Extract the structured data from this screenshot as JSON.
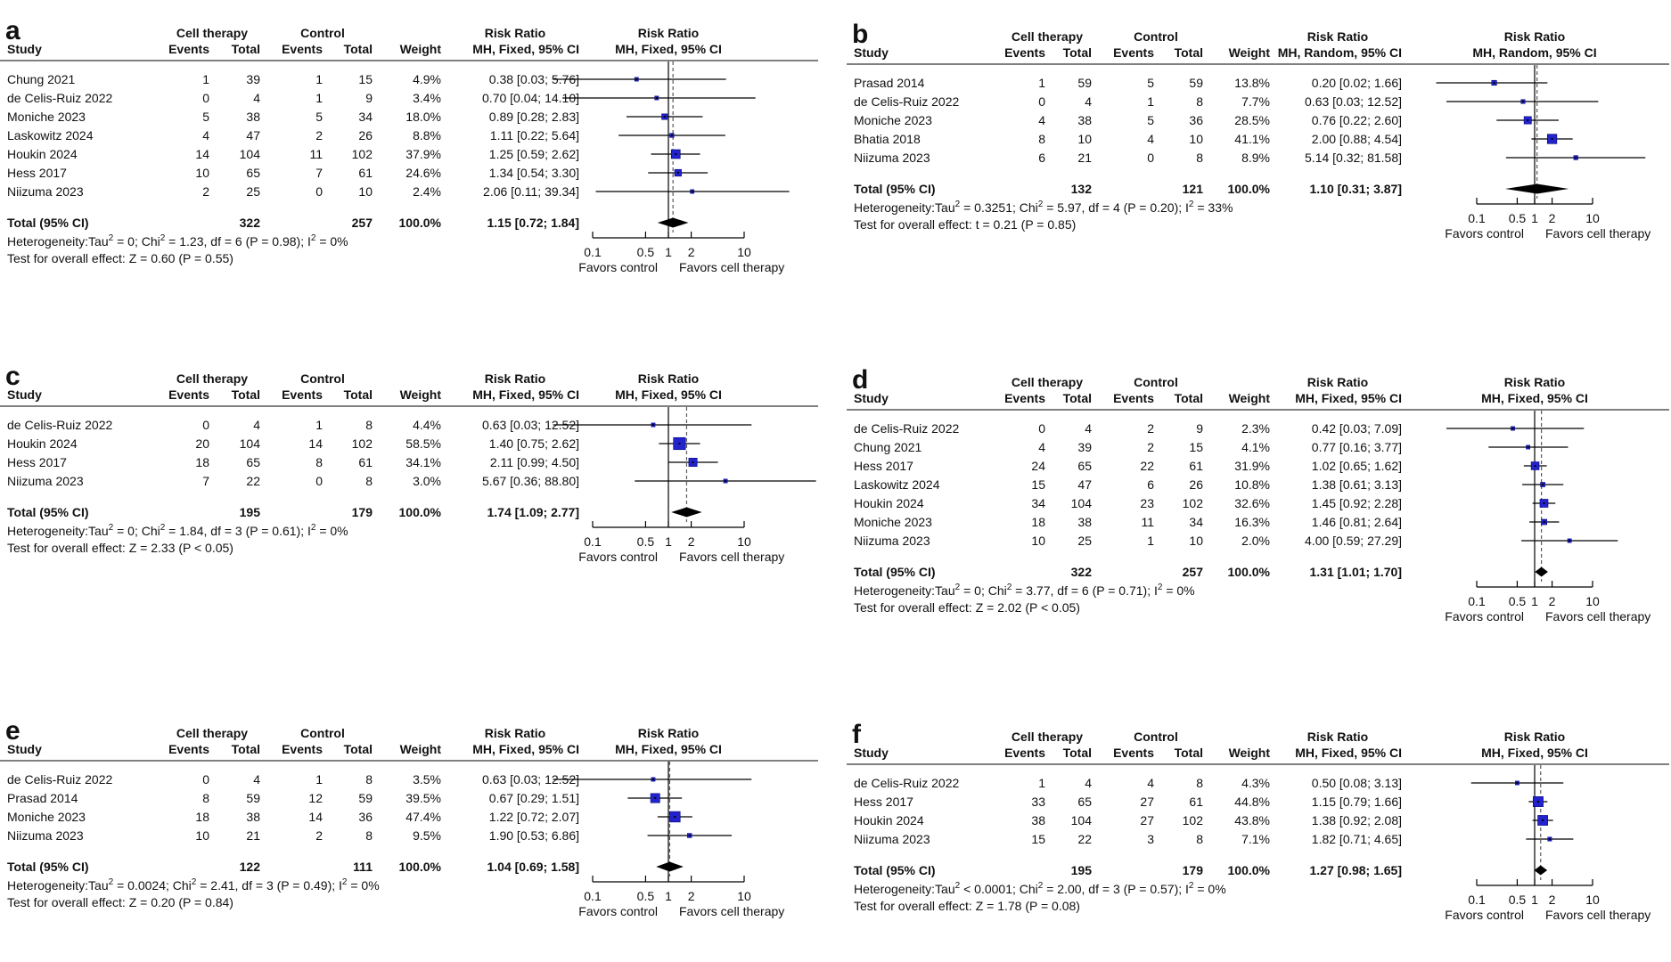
{
  "figure": {
    "headers": {
      "study": "Study",
      "events": "Events",
      "total": "Total",
      "weight": "Weight",
      "group1": "Cell therapy",
      "group2": "Control",
      "effect": "Risk Ratio"
    },
    "axis": {
      "scale": "log",
      "ticks": [
        0.1,
        0.5,
        1,
        2,
        10
      ],
      "labels": [
        "0.1",
        "0.5",
        "1",
        "2",
        "10"
      ],
      "favors_left": "Favors control",
      "favors_right": "Favors cell therapy"
    },
    "colors": {
      "square": "#2323cd",
      "square_border": "#00007a",
      "marker_center": "#000000",
      "diamond": "#000000",
      "ci_line": "#000000",
      "rule": "#808080",
      "dashed_line": "#5a5a5a",
      "text": "#111111"
    }
  },
  "chart_data": [
    {
      "type": "forest",
      "label": "a",
      "model": "MH, Fixed, 95% CI",
      "xlim": [
        0.1,
        10
      ],
      "studies": [
        {
          "study": "Chung 2021",
          "events1": 1,
          "total1": 39,
          "events2": 1,
          "total2": 15,
          "weight": "4.9%",
          "rr": 0.38,
          "ci_low": 0.03,
          "ci_high": 5.76,
          "ci_text": "0.38 [0.03; 5.76]"
        },
        {
          "study": "de Celis-Ruiz 2022",
          "events1": 0,
          "total1": 4,
          "events2": 1,
          "total2": 9,
          "weight": "3.4%",
          "rr": 0.7,
          "ci_low": 0.04,
          "ci_high": 14.1,
          "ci_text": "0.70 [0.04; 14.10]"
        },
        {
          "study": "Moniche 2023",
          "events1": 5,
          "total1": 38,
          "events2": 5,
          "total2": 34,
          "weight": "18.0%",
          "rr": 0.89,
          "ci_low": 0.28,
          "ci_high": 2.83,
          "ci_text": "0.89 [0.28; 2.83]"
        },
        {
          "study": "Laskowitz 2024",
          "events1": 4,
          "total1": 47,
          "events2": 2,
          "total2": 26,
          "weight": "8.8%",
          "rr": 1.11,
          "ci_low": 0.22,
          "ci_high": 5.64,
          "ci_text": "1.11 [0.22; 5.64]"
        },
        {
          "study": "Houkin 2024",
          "events1": 14,
          "total1": 104,
          "events2": 11,
          "total2": 102,
          "weight": "37.9%",
          "rr": 1.25,
          "ci_low": 0.59,
          "ci_high": 2.62,
          "ci_text": "1.25 [0.59; 2.62]"
        },
        {
          "study": "Hess 2017",
          "events1": 10,
          "total1": 65,
          "events2": 7,
          "total2": 61,
          "weight": "24.6%",
          "rr": 1.34,
          "ci_low": 0.54,
          "ci_high": 3.3,
          "ci_text": "1.34 [0.54; 3.30]"
        },
        {
          "study": "Niizuma 2023",
          "events1": 2,
          "total1": 25,
          "events2": 0,
          "total2": 10,
          "weight": "2.4%",
          "rr": 2.06,
          "ci_low": 0.11,
          "ci_high": 39.34,
          "ci_text": "2.06 [0.11; 39.34]"
        }
      ],
      "total": {
        "label": "Total (95% CI)",
        "total1": 322,
        "total2": 257,
        "weight": "100.0%",
        "rr": 1.15,
        "ci_low": 0.72,
        "ci_high": 1.84,
        "ci_text": "1.15 [0.72; 1.84]"
      },
      "heterogeneity": "Heterogeneity:Tau² = 0; Chi² = 1.23, df = 6 (P = 0.98); I² = 0%",
      "overall_test": "Test for overall effect: Z = 0.60 (P = 0.55)"
    },
    {
      "type": "forest",
      "label": "b",
      "model": "MH, Random, 95% CI",
      "xlim": [
        0.1,
        10
      ],
      "studies": [
        {
          "study": "Prasad 2014",
          "events1": 1,
          "total1": 59,
          "events2": 5,
          "total2": 59,
          "weight": "13.8%",
          "rr": 0.2,
          "ci_low": 0.02,
          "ci_high": 1.66,
          "ci_text": "0.20 [0.02; 1.66]"
        },
        {
          "study": "de Celis-Ruiz 2022",
          "events1": 0,
          "total1": 4,
          "events2": 1,
          "total2": 8,
          "weight": "7.7%",
          "rr": 0.63,
          "ci_low": 0.03,
          "ci_high": 12.52,
          "ci_text": "0.63 [0.03; 12.52]"
        },
        {
          "study": "Moniche 2023",
          "events1": 4,
          "total1": 38,
          "events2": 5,
          "total2": 36,
          "weight": "28.5%",
          "rr": 0.76,
          "ci_low": 0.22,
          "ci_high": 2.6,
          "ci_text": "0.76 [0.22; 2.60]"
        },
        {
          "study": "Bhatia 2018",
          "events1": 8,
          "total1": 10,
          "events2": 4,
          "total2": 10,
          "weight": "41.1%",
          "rr": 2.0,
          "ci_low": 0.88,
          "ci_high": 4.54,
          "ci_text": "2.00 [0.88; 4.54]"
        },
        {
          "study": "Niizuma 2023",
          "events1": 6,
          "total1": 21,
          "events2": 0,
          "total2": 8,
          "weight": "8.9%",
          "rr": 5.14,
          "ci_low": 0.32,
          "ci_high": 81.58,
          "ci_text": "5.14 [0.32; 81.58]"
        }
      ],
      "total": {
        "label": "Total (95% CI)",
        "total1": 132,
        "total2": 121,
        "weight": "100.0%",
        "rr": 1.1,
        "ci_low": 0.31,
        "ci_high": 3.87,
        "ci_text": "1.10 [0.31; 3.87]"
      },
      "heterogeneity": "Heterogeneity:Tau² = 0.3251; Chi² = 5.97, df = 4 (P = 0.20); I² = 33%",
      "overall_test": "Test for overall effect: t = 0.21 (P = 0.85)"
    },
    {
      "type": "forest",
      "label": "c",
      "model": "MH, Fixed, 95% CI",
      "xlim": [
        0.1,
        10
      ],
      "studies": [
        {
          "study": "de Celis-Ruiz 2022",
          "events1": 0,
          "total1": 4,
          "events2": 1,
          "total2": 8,
          "weight": "4.4%",
          "rr": 0.63,
          "ci_low": 0.03,
          "ci_high": 12.52,
          "ci_text": "0.63 [0.03; 12.52]"
        },
        {
          "study": "Houkin 2024",
          "events1": 20,
          "total1": 104,
          "events2": 14,
          "total2": 102,
          "weight": "58.5%",
          "rr": 1.4,
          "ci_low": 0.75,
          "ci_high": 2.62,
          "ci_text": "1.40 [0.75; 2.62]"
        },
        {
          "study": "Hess 2017",
          "events1": 18,
          "total1": 65,
          "events2": 8,
          "total2": 61,
          "weight": "34.1%",
          "rr": 2.11,
          "ci_low": 0.99,
          "ci_high": 4.5,
          "ci_text": "2.11 [0.99; 4.50]"
        },
        {
          "study": "Niizuma 2023",
          "events1": 7,
          "total1": 22,
          "events2": 0,
          "total2": 8,
          "weight": "3.0%",
          "rr": 5.67,
          "ci_low": 0.36,
          "ci_high": 88.8,
          "ci_text": "5.67 [0.36; 88.80]"
        }
      ],
      "total": {
        "label": "Total (95% CI)",
        "total1": 195,
        "total2": 179,
        "weight": "100.0%",
        "rr": 1.74,
        "ci_low": 1.09,
        "ci_high": 2.77,
        "ci_text": "1.74 [1.09; 2.77]"
      },
      "heterogeneity": "Heterogeneity:Tau² = 0; Chi² = 1.84, df = 3 (P = 0.61); I² = 0%",
      "overall_test": "Test for overall effect: Z = 2.33 (P < 0.05)"
    },
    {
      "type": "forest",
      "label": "d",
      "model": "MH, Fixed, 95% CI",
      "xlim": [
        0.1,
        10
      ],
      "studies": [
        {
          "study": "de Celis-Ruiz 2022",
          "events1": 0,
          "total1": 4,
          "events2": 2,
          "total2": 9,
          "weight": "2.3%",
          "rr": 0.42,
          "ci_low": 0.03,
          "ci_high": 7.09,
          "ci_text": "0.42 [0.03; 7.09]"
        },
        {
          "study": "Chung 2021",
          "events1": 4,
          "total1": 39,
          "events2": 2,
          "total2": 15,
          "weight": "4.1%",
          "rr": 0.77,
          "ci_low": 0.16,
          "ci_high": 3.77,
          "ci_text": "0.77 [0.16; 3.77]"
        },
        {
          "study": "Hess 2017",
          "events1": 24,
          "total1": 65,
          "events2": 22,
          "total2": 61,
          "weight": "31.9%",
          "rr": 1.02,
          "ci_low": 0.65,
          "ci_high": 1.62,
          "ci_text": "1.02 [0.65; 1.62]"
        },
        {
          "study": "Laskowitz 2024",
          "events1": 15,
          "total1": 47,
          "events2": 6,
          "total2": 26,
          "weight": "10.8%",
          "rr": 1.38,
          "ci_low": 0.61,
          "ci_high": 3.13,
          "ci_text": "1.38 [0.61; 3.13]"
        },
        {
          "study": "Houkin 2024",
          "events1": 34,
          "total1": 104,
          "events2": 23,
          "total2": 102,
          "weight": "32.6%",
          "rr": 1.45,
          "ci_low": 0.92,
          "ci_high": 2.28,
          "ci_text": "1.45 [0.92; 2.28]"
        },
        {
          "study": "Moniche 2023",
          "events1": 18,
          "total1": 38,
          "events2": 11,
          "total2": 34,
          "weight": "16.3%",
          "rr": 1.46,
          "ci_low": 0.81,
          "ci_high": 2.64,
          "ci_text": "1.46 [0.81; 2.64]"
        },
        {
          "study": "Niizuma 2023",
          "events1": 10,
          "total1": 25,
          "events2": 1,
          "total2": 10,
          "weight": "2.0%",
          "rr": 4.0,
          "ci_low": 0.59,
          "ci_high": 27.29,
          "ci_text": "4.00 [0.59; 27.29]"
        }
      ],
      "total": {
        "label": "Total (95% CI)",
        "total1": 322,
        "total2": 257,
        "weight": "100.0%",
        "rr": 1.31,
        "ci_low": 1.01,
        "ci_high": 1.7,
        "ci_text": "1.31 [1.01; 1.70]"
      },
      "heterogeneity": "Heterogeneity:Tau² = 0; Chi² = 3.77, df = 6 (P = 0.71); I² = 0%",
      "overall_test": "Test for overall effect: Z = 2.02 (P < 0.05)"
    },
    {
      "type": "forest",
      "label": "e",
      "model": "MH, Fixed, 95% CI",
      "xlim": [
        0.1,
        10
      ],
      "studies": [
        {
          "study": "de Celis-Ruiz 2022",
          "events1": 0,
          "total1": 4,
          "events2": 1,
          "total2": 8,
          "weight": "3.5%",
          "rr": 0.63,
          "ci_low": 0.03,
          "ci_high": 12.52,
          "ci_text": "0.63 [0.03; 12.52]"
        },
        {
          "study": "Prasad 2014",
          "events1": 8,
          "total1": 59,
          "events2": 12,
          "total2": 59,
          "weight": "39.5%",
          "rr": 0.67,
          "ci_low": 0.29,
          "ci_high": 1.51,
          "ci_text": "0.67 [0.29; 1.51]"
        },
        {
          "study": "Moniche 2023",
          "events1": 18,
          "total1": 38,
          "events2": 14,
          "total2": 36,
          "weight": "47.4%",
          "rr": 1.22,
          "ci_low": 0.72,
          "ci_high": 2.07,
          "ci_text": "1.22 [0.72; 2.07]"
        },
        {
          "study": "Niizuma 2023",
          "events1": 10,
          "total1": 21,
          "events2": 2,
          "total2": 8,
          "weight": "9.5%",
          "rr": 1.9,
          "ci_low": 0.53,
          "ci_high": 6.86,
          "ci_text": "1.90 [0.53; 6.86]"
        }
      ],
      "total": {
        "label": "Total (95% CI)",
        "total1": 122,
        "total2": 111,
        "weight": "100.0%",
        "rr": 1.04,
        "ci_low": 0.69,
        "ci_high": 1.58,
        "ci_text": "1.04 [0.69; 1.58]"
      },
      "heterogeneity": "Heterogeneity:Tau² = 0.0024; Chi² = 2.41, df = 3 (P = 0.49); I² = 0%",
      "overall_test": "Test for overall effect: Z = 0.20 (P = 0.84)"
    },
    {
      "type": "forest",
      "label": "f",
      "model": "MH, Fixed, 95% CI",
      "xlim": [
        0.1,
        10
      ],
      "studies": [
        {
          "study": "de Celis-Ruiz 2022",
          "events1": 1,
          "total1": 4,
          "events2": 4,
          "total2": 8,
          "weight": "4.3%",
          "rr": 0.5,
          "ci_low": 0.08,
          "ci_high": 3.13,
          "ci_text": "0.50 [0.08; 3.13]"
        },
        {
          "study": "Hess 2017",
          "events1": 33,
          "total1": 65,
          "events2": 27,
          "total2": 61,
          "weight": "44.8%",
          "rr": 1.15,
          "ci_low": 0.79,
          "ci_high": 1.66,
          "ci_text": "1.15 [0.79; 1.66]"
        },
        {
          "study": "Houkin 2024",
          "events1": 38,
          "total1": 104,
          "events2": 27,
          "total2": 102,
          "weight": "43.8%",
          "rr": 1.38,
          "ci_low": 0.92,
          "ci_high": 2.08,
          "ci_text": "1.38 [0.92; 2.08]"
        },
        {
          "study": "Niizuma 2023",
          "events1": 15,
          "total1": 22,
          "events2": 3,
          "total2": 8,
          "weight": "7.1%",
          "rr": 1.82,
          "ci_low": 0.71,
          "ci_high": 4.65,
          "ci_text": "1.82 [0.71; 4.65]"
        }
      ],
      "total": {
        "label": "Total (95% CI)",
        "total1": 195,
        "total2": 179,
        "weight": "100.0%",
        "rr": 1.27,
        "ci_low": 0.98,
        "ci_high": 1.65,
        "ci_text": "1.27 [0.98; 1.65]"
      },
      "heterogeneity": "Heterogeneity:Tau² < 0.0001; Chi² = 2.00, df = 3 (P = 0.57); I² = 0%",
      "overall_test": "Test for overall effect: Z = 1.78 (P = 0.08)"
    }
  ]
}
